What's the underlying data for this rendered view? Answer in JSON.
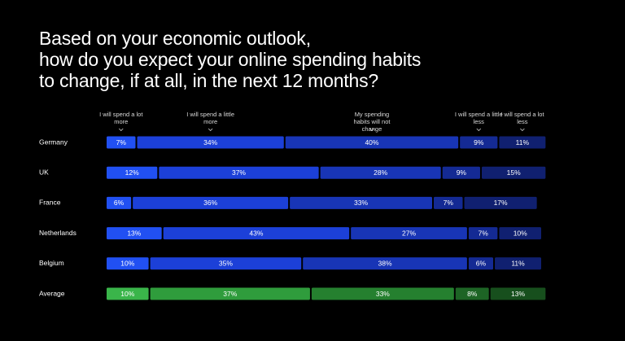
{
  "chart_data": {
    "type": "stacked-bar",
    "orientation": "horizontal",
    "title": [
      "Based on your economic outlook,",
      "how do you expect your online spending habits",
      "to change, if at all, in the next 12 months?"
    ],
    "categories": [
      "Germany",
      "UK",
      "France",
      "Netherlands",
      "Belgium",
      "Average"
    ],
    "highlight_category_colors": [
      "#3ab54a",
      "#2f9c3c",
      "#25802f",
      "#1d6425",
      "#174f1d"
    ],
    "series": [
      {
        "name": "I will spend a lot more",
        "color": "#2150f2",
        "values": [
          7,
          12,
          6,
          13,
          10,
          10
        ],
        "value_labels": [
          "7%",
          "12%",
          "6%",
          "13%",
          "10%",
          "10%"
        ]
      },
      {
        "name": "I will spend a little more",
        "color": "#1c40d8",
        "values": [
          34,
          37,
          36,
          43,
          35,
          37
        ],
        "value_labels": [
          "34%",
          "37%",
          "36%",
          "43%",
          "35%",
          "37%"
        ]
      },
      {
        "name": "My spending habits will not change",
        "color": "#1835b6",
        "values": [
          40,
          28,
          33,
          27,
          38,
          33
        ],
        "value_labels": [
          "40%",
          "28%",
          "33%",
          "27%",
          "38%",
          "33%"
        ]
      },
      {
        "name": "I will spend a little less",
        "color": "#142a94",
        "values": [
          9,
          9,
          7,
          7,
          6,
          8
        ],
        "value_labels": [
          "9%",
          "9%",
          "7%",
          "7%",
          "6%",
          "8%"
        ]
      },
      {
        "name": "I will spend a lot less",
        "color": "#102070",
        "values": [
          11,
          15,
          17,
          10,
          11,
          13
        ],
        "value_labels": [
          "11%",
          "15%",
          "17%",
          "10%",
          "11%",
          "13%"
        ]
      }
    ],
    "xlim": [
      0,
      100
    ]
  }
}
